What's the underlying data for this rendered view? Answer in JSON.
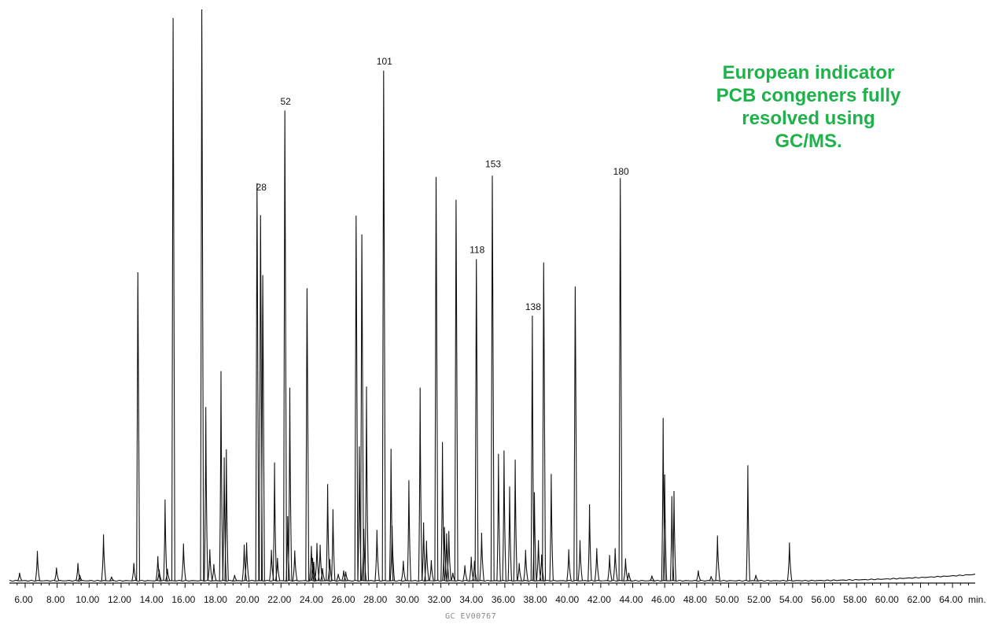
{
  "annotation": "European indicator\nPCB congeners fully\nresolved using\nGC/MS.",
  "footer": "GC  EV00767",
  "chart_data": {
    "type": "line",
    "xlabel": "min.",
    "xlim": [
      5.0,
      65.6
    ],
    "ylim": [
      0,
      100
    ],
    "x_ticks": [
      "6.00",
      "8.00",
      "10.00",
      "12.00",
      "14.00",
      "16.00",
      "18.00",
      "20.00",
      "22.00",
      "24.00",
      "26.00",
      "28.00",
      "30.00",
      "32.00",
      "34.00",
      "36.00",
      "38.00",
      "40.00",
      "42.00",
      "44.00",
      "46.00",
      "48.00",
      "50.00",
      "52.00",
      "54.00",
      "56.00",
      "58.00",
      "60.00",
      "62.00",
      "64.00"
    ],
    "x_tick_values": [
      6,
      8,
      10,
      12,
      14,
      16,
      18,
      20,
      22,
      24,
      26,
      28,
      30,
      32,
      34,
      36,
      38,
      40,
      42,
      44,
      46,
      48,
      50,
      52,
      54,
      56,
      58,
      60,
      62,
      64
    ],
    "grid": false,
    "peak_labels": [
      {
        "label": "28",
        "x": 20.72,
        "y": 67.8
      },
      {
        "label": "52",
        "x": 22.24,
        "y": 82.8
      },
      {
        "label": "101",
        "x": 28.42,
        "y": 89.8
      },
      {
        "label": "118",
        "x": 34.22,
        "y": 56.8
      },
      {
        "label": "153",
        "x": 35.22,
        "y": 71.8
      },
      {
        "label": "138",
        "x": 37.72,
        "y": 46.8
      },
      {
        "label": "180",
        "x": 43.22,
        "y": 70.5
      }
    ],
    "peaks": [
      [
        5.65,
        1.4
      ],
      [
        6.76,
        5.2
      ],
      [
        7.96,
        2.3
      ],
      [
        9.3,
        3.1
      ],
      [
        9.42,
        1.0
      ],
      [
        10.9,
        8.1
      ],
      [
        11.4,
        0.7
      ],
      [
        12.8,
        3.1
      ],
      [
        13.05,
        54.0
      ],
      [
        14.3,
        4.3
      ],
      [
        14.38,
        2.0
      ],
      [
        14.75,
        14.2
      ],
      [
        14.9,
        2.1
      ],
      [
        15.25,
        98.5
      ],
      [
        15.9,
        6.5
      ],
      [
        17.05,
        100.0
      ],
      [
        17.3,
        30.4
      ],
      [
        17.55,
        5.5
      ],
      [
        17.8,
        2.9
      ],
      [
        18.25,
        36.7
      ],
      [
        18.45,
        21.6
      ],
      [
        18.58,
        23.0
      ],
      [
        19.1,
        1.0
      ],
      [
        19.7,
        6.3
      ],
      [
        19.85,
        6.7
      ],
      [
        20.5,
        69.6
      ],
      [
        20.72,
        64.0
      ],
      [
        20.86,
        53.5
      ],
      [
        21.4,
        5.4
      ],
      [
        21.6,
        20.7
      ],
      [
        21.78,
        4.0
      ],
      [
        22.24,
        82.3
      ],
      [
        22.42,
        11.3
      ],
      [
        22.55,
        33.8
      ],
      [
        22.86,
        5.3
      ],
      [
        23.63,
        51.2
      ],
      [
        23.9,
        6.1
      ],
      [
        23.98,
        4.0
      ],
      [
        24.05,
        3.3
      ],
      [
        24.25,
        6.6
      ],
      [
        24.45,
        6.3
      ],
      [
        24.6,
        2.2
      ],
      [
        24.92,
        16.9
      ],
      [
        25.05,
        3.8
      ],
      [
        25.25,
        12.5
      ],
      [
        25.58,
        1.2
      ],
      [
        25.92,
        1.8
      ],
      [
        26.05,
        1.6
      ],
      [
        26.7,
        63.9
      ],
      [
        26.9,
        23.5
      ],
      [
        27.06,
        60.6
      ],
      [
        27.18,
        9.1
      ],
      [
        27.35,
        34.0
      ],
      [
        28.0,
        8.9
      ],
      [
        28.42,
        89.3
      ],
      [
        28.88,
        23.1
      ],
      [
        28.95,
        9.6
      ],
      [
        29.65,
        3.5
      ],
      [
        30.0,
        17.6
      ],
      [
        30.7,
        33.8
      ],
      [
        30.92,
        10.2
      ],
      [
        31.1,
        7.0
      ],
      [
        31.4,
        3.6
      ],
      [
        31.7,
        70.7
      ],
      [
        32.1,
        24.3
      ],
      [
        32.22,
        9.4
      ],
      [
        32.36,
        8.3
      ],
      [
        32.5,
        8.7
      ],
      [
        32.75,
        1.4
      ],
      [
        32.95,
        66.7
      ],
      [
        33.5,
        2.7
      ],
      [
        33.9,
        4.2
      ],
      [
        34.1,
        3.5
      ],
      [
        34.22,
        56.3
      ],
      [
        34.55,
        8.4
      ],
      [
        35.22,
        70.9
      ],
      [
        35.6,
        22.2
      ],
      [
        35.95,
        22.8
      ],
      [
        36.3,
        16.5
      ],
      [
        36.65,
        21.2
      ],
      [
        36.9,
        3.1
      ],
      [
        37.3,
        5.4
      ],
      [
        37.72,
        46.4
      ],
      [
        37.85,
        15.5
      ],
      [
        38.1,
        7.1
      ],
      [
        38.3,
        4.6
      ],
      [
        38.43,
        55.7
      ],
      [
        38.9,
        18.7
      ],
      [
        40.0,
        5.5
      ],
      [
        40.4,
        51.5
      ],
      [
        40.7,
        7.1
      ],
      [
        41.3,
        13.4
      ],
      [
        41.75,
        5.7
      ],
      [
        42.55,
        4.5
      ],
      [
        42.9,
        5.7
      ],
      [
        43.22,
        70.5
      ],
      [
        43.55,
        3.9
      ],
      [
        43.75,
        1.4
      ],
      [
        45.2,
        0.9
      ],
      [
        45.9,
        28.5
      ],
      [
        46.0,
        18.6
      ],
      [
        46.45,
        14.8
      ],
      [
        46.58,
        15.7
      ],
      [
        48.1,
        1.8
      ],
      [
        48.9,
        0.8
      ],
      [
        49.3,
        7.9
      ],
      [
        51.2,
        20.2
      ],
      [
        51.7,
        1.0
      ],
      [
        53.8,
        6.7
      ]
    ]
  }
}
